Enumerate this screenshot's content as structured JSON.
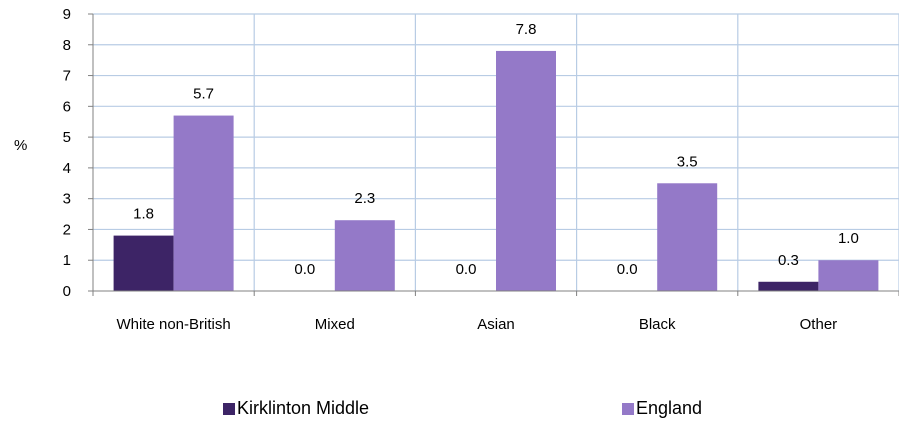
{
  "chart_data": {
    "type": "bar",
    "ylabel": "%",
    "ylim": [
      0,
      9
    ],
    "yticks": [
      "0",
      "1",
      "2",
      "3",
      "4",
      "5",
      "6",
      "7",
      "8",
      "9"
    ],
    "categories": [
      "White non-British",
      "Mixed",
      "Asian",
      "Black",
      "Other"
    ],
    "series": [
      {
        "name": "Kirklinton Middle",
        "color": "#3d2466",
        "values": [
          1.8,
          0.0,
          0.0,
          0.0,
          0.3
        ],
        "labels": [
          "1.8",
          "0.0",
          "0.0",
          "0.0",
          "0.3"
        ]
      },
      {
        "name": "England",
        "color": "#9479c8",
        "values": [
          5.7,
          2.3,
          7.8,
          3.5,
          1.0
        ],
        "labels": [
          "5.7",
          "2.3",
          "7.8",
          "3.5",
          "1.0"
        ]
      }
    ],
    "grid": true,
    "legend_position": "bottom"
  }
}
